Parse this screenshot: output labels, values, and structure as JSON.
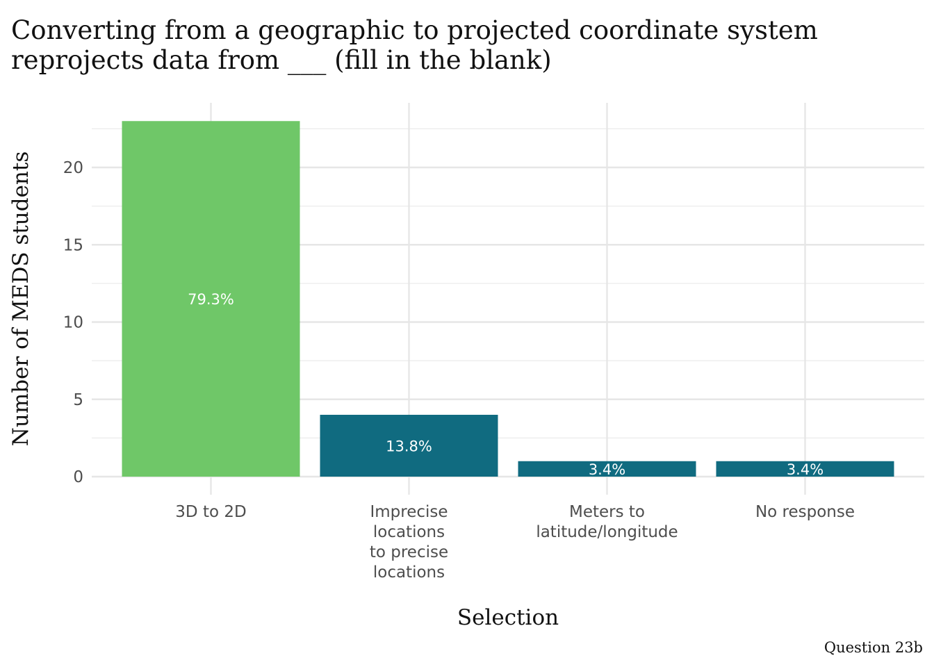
{
  "chart_data": {
    "type": "bar",
    "title": "Converting from a geographic to projected coordinate system\n reprojects data from ___ (fill in the blank)",
    "xlabel": "Selection",
    "ylabel": "Number of MEDS students",
    "caption": "Question 23b",
    "categories": [
      "3D to 2D",
      "Imprecise locations to precise locations",
      "Meters to latitude/longitude",
      "No response"
    ],
    "category_lines": [
      [
        "3D to 2D"
      ],
      [
        "Imprecise",
        "locations",
        "to precise",
        "locations"
      ],
      [
        "Meters to",
        "latitude/longitude"
      ],
      [
        "No response"
      ]
    ],
    "values": [
      23,
      4,
      1,
      1
    ],
    "percent_labels": [
      "79.3%",
      "13.8%",
      "3.4%",
      "3.4%"
    ],
    "colors": [
      "#6fc768",
      "#106b80",
      "#106b80",
      "#106b80"
    ],
    "ylim": [
      0,
      23
    ],
    "yticks": [
      0,
      5,
      10,
      15,
      20
    ],
    "grid": true
  }
}
